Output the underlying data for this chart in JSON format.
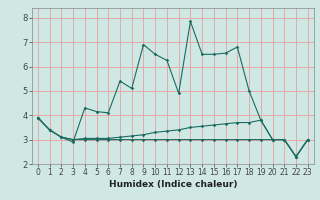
{
  "xlabel": "Humidex (Indice chaleur)",
  "background_color": "#cfe8e4",
  "grid_color_h": "#e8a0a0",
  "grid_color_v": "#e8a0a0",
  "line_color": "#1a6b60",
  "xlim": [
    -0.5,
    23.5
  ],
  "ylim": [
    2.0,
    8.4
  ],
  "xticks": [
    0,
    1,
    2,
    3,
    4,
    5,
    6,
    7,
    8,
    9,
    10,
    11,
    12,
    13,
    14,
    15,
    16,
    17,
    18,
    19,
    20,
    21,
    22,
    23
  ],
  "yticks": [
    2,
    3,
    4,
    5,
    6,
    7,
    8
  ],
  "line1_y": [
    3.9,
    3.4,
    3.1,
    2.9,
    4.3,
    4.15,
    4.1,
    5.4,
    5.1,
    6.9,
    6.5,
    6.25,
    4.9,
    7.85,
    6.5,
    6.5,
    6.55,
    6.8,
    5.0,
    3.8,
    3.0,
    3.0,
    2.3,
    3.0
  ],
  "line2_y": [
    3.9,
    3.4,
    3.1,
    3.0,
    3.05,
    3.05,
    3.05,
    3.1,
    3.15,
    3.2,
    3.3,
    3.35,
    3.4,
    3.5,
    3.55,
    3.6,
    3.65,
    3.7,
    3.7,
    3.8,
    3.0,
    3.0,
    2.3,
    3.0
  ],
  "line3_y": [
    3.9,
    3.4,
    3.1,
    3.0,
    3.0,
    3.0,
    3.0,
    3.0,
    3.0,
    3.0,
    3.0,
    3.0,
    3.0,
    3.0,
    3.0,
    3.0,
    3.0,
    3.0,
    3.0,
    3.0,
    3.0,
    3.0,
    2.3,
    3.0
  ],
  "tick_fontsize": 5.5,
  "xlabel_fontsize": 6.5,
  "tick_color": "#444444"
}
